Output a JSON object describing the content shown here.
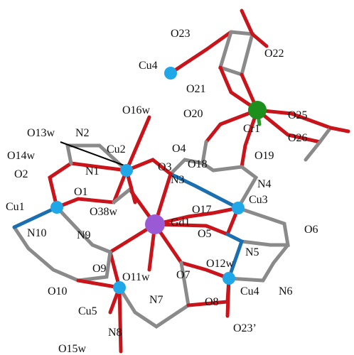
{
  "labels": [
    "Cu4",
    "O23",
    "O22",
    "O21",
    "O16w",
    "O20",
    "O25",
    "O13w",
    "N2",
    "Cr1",
    "O26",
    "O14w",
    "Cu2",
    "O4",
    "O19",
    "O18",
    "O2",
    "N1",
    "O3",
    "N3",
    "N4",
    "O1",
    "Cu1",
    "O38w",
    "O17",
    "Cu3",
    "O6",
    "Gd1",
    "O5",
    "N10",
    "N9",
    "N5",
    "O12w",
    "O9",
    "O11w",
    "O7",
    "O10",
    "N7",
    "O8",
    "Cu4",
    "N6",
    "Cu5",
    "N8",
    "O23’",
    "O15w"
  ]
}
